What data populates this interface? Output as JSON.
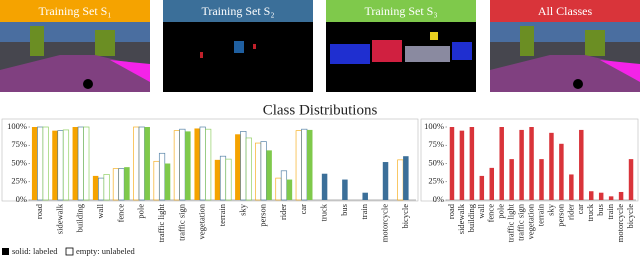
{
  "panels": [
    {
      "title": "Training Set S₁",
      "color": "#f5a300"
    },
    {
      "title": "Training Set S₂",
      "color": "#3b6f99"
    },
    {
      "title": "Training Set S₃",
      "color": "#7fc94b"
    },
    {
      "title": "All Classes",
      "color": "#d9343a"
    }
  ],
  "figure_title": "Class Distributions",
  "legend": {
    "solid": "solid: labeled",
    "empty": "empty: unlabeled"
  },
  "chart_data": [
    {
      "type": "grouped-bar",
      "categories": [
        "road",
        "sidewalk",
        "building",
        "wall",
        "fence",
        "pole",
        "traffic light",
        "traffic sign",
        "vegetation",
        "terrain",
        "sky",
        "person",
        "rider",
        "car",
        "truck",
        "bus",
        "train",
        "motorcycle",
        "bicycle"
      ],
      "series": [
        {
          "color": "#f5a300",
          "values": [
            100,
            95,
            100,
            33,
            43,
            100,
            53,
            95,
            98,
            55,
            90,
            78,
            30,
            95,
            null,
            null,
            null,
            null,
            55
          ],
          "filled": [
            true,
            true,
            true,
            true,
            false,
            false,
            false,
            false,
            true,
            true,
            true,
            false,
            false,
            false,
            false,
            false,
            false,
            false,
            false
          ]
        },
        {
          "color": "#3b6f99",
          "values": [
            100,
            95,
            100,
            30,
            43,
            100,
            64,
            97,
            100,
            60,
            94,
            80,
            40,
            97,
            36,
            28,
            10,
            52,
            60
          ],
          "filled": [
            false,
            false,
            false,
            false,
            false,
            false,
            false,
            false,
            false,
            false,
            false,
            false,
            false,
            false,
            true,
            true,
            true,
            true,
            true
          ]
        },
        {
          "color": "#7fc94b",
          "values": [
            100,
            96,
            100,
            35,
            45,
            100,
            50,
            94,
            97,
            56,
            85,
            68,
            28,
            96,
            null,
            null,
            null,
            null,
            null
          ],
          "filled": [
            false,
            false,
            false,
            false,
            true,
            true,
            true,
            true,
            false,
            false,
            false,
            true,
            true,
            true,
            false,
            false,
            false,
            false,
            false
          ]
        }
      ],
      "ylim": [
        0,
        100
      ],
      "yticks": [
        {
          "value": 0,
          "label": "0%"
        },
        {
          "value": 25,
          "label": "25%"
        },
        {
          "value": 50,
          "label": "50%"
        },
        {
          "value": 75,
          "label": "75%"
        },
        {
          "value": 100,
          "label": "100%"
        }
      ]
    },
    {
      "type": "bar",
      "categories": [
        "road",
        "sidewalk",
        "building",
        "wall",
        "fence",
        "pole",
        "traffic light",
        "traffic sign",
        "vegetation",
        "terrain",
        "sky",
        "person",
        "rider",
        "car",
        "truck",
        "bus",
        "train",
        "motorcycle",
        "bicycle"
      ],
      "values": [
        100,
        95,
        100,
        33,
        44,
        100,
        56,
        96,
        100,
        56,
        92,
        77,
        35,
        96,
        12,
        10,
        5,
        11,
        56
      ],
      "color": "#d9343a",
      "ylim": [
        0,
        100
      ],
      "yticks": [
        {
          "value": 0,
          "label": "0%"
        },
        {
          "value": 25,
          "label": "25%"
        },
        {
          "value": 50,
          "label": "50%"
        },
        {
          "value": 75,
          "label": "75%"
        },
        {
          "value": 100,
          "label": "100%"
        }
      ]
    }
  ]
}
